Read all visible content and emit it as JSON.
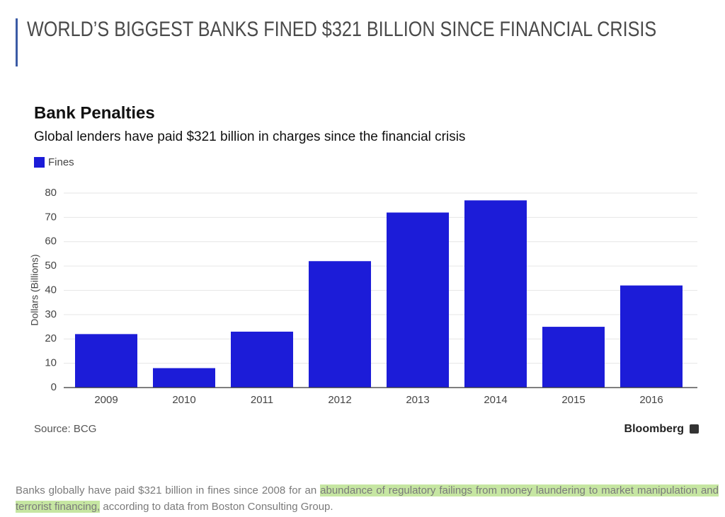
{
  "article": {
    "headline": "WORLD’S BIGGEST BANKS FINED $321 BILLION SINCE FINANCIAL CRISIS",
    "body": [
      "Banks globally have paid $321 billion in fines since 2008 for an ",
      "abundance of regulatory failings from money laundering to market manipulation and terrorist financing,",
      " according to data from Boston Consulting Group."
    ]
  },
  "chart_data": {
    "type": "bar",
    "title": "Bank Penalties",
    "subtitle": "Global lenders have paid $321 billion in charges since the financial crisis",
    "y_label": "Dollars (Billions)",
    "source": "Source: BCG",
    "brand": "Bloomberg",
    "categories": [
      "2009",
      "2010",
      "2011",
      "2012",
      "2013",
      "2014",
      "2015",
      "2016"
    ],
    "series": [
      {
        "name": "Fines",
        "color": "#1c1cd8",
        "values": [
          22,
          8,
          23,
          52,
          72,
          77,
          25,
          42
        ]
      }
    ],
    "ylim": [
      0,
      80
    ],
    "yticks": [
      0,
      10,
      20,
      30,
      40,
      50,
      60,
      70,
      80
    ],
    "grid": true
  }
}
